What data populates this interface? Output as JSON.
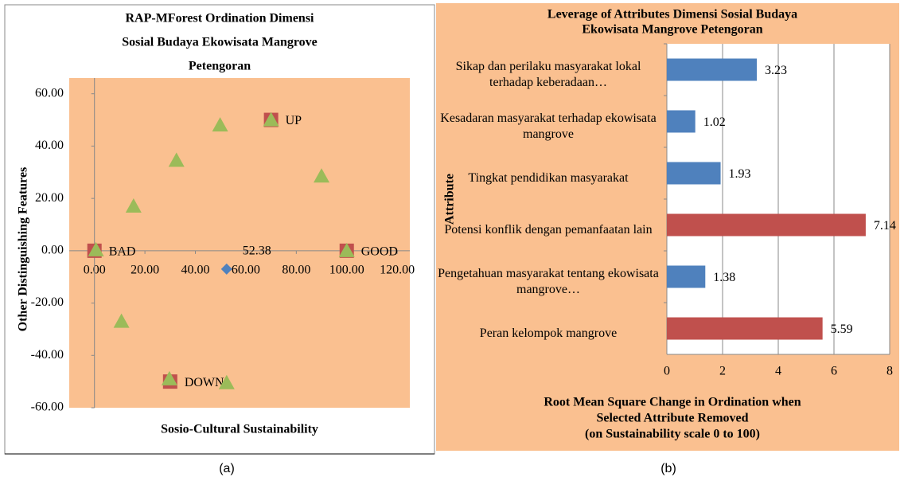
{
  "chart_data": [
    {
      "type": "scatter",
      "title": [
        "RAP-MForest Ordination Dimensi",
        "Sosial  Budaya Ekowisata Mangrove",
        "Petengoran"
      ],
      "x_label": "Sosio-Cultural Sustainability",
      "y_label": "Other Distinguishing Features",
      "xlim": [
        -10,
        125
      ],
      "ylim": [
        -60,
        66
      ],
      "xticks": [
        {
          "value": 0,
          "label": "0.00"
        },
        {
          "value": 20,
          "label": "20.00"
        },
        {
          "value": 40,
          "label": "40.00"
        },
        {
          "value": 60,
          "label": "60.00"
        },
        {
          "value": 80,
          "label": "80.00"
        },
        {
          "value": 100,
          "label": "100.00"
        },
        {
          "value": 120,
          "label": "120.00"
        }
      ],
      "yticks": [
        {
          "value": -60,
          "label": "-60.00"
        },
        {
          "value": -40,
          "label": "-40.00"
        },
        {
          "value": -20,
          "label": "-20.00"
        },
        {
          "value": 0,
          "label": "0.00"
        },
        {
          "value": 20,
          "label": "20.00"
        },
        {
          "value": 40,
          "label": "40.00"
        },
        {
          "value": 60,
          "label": "60.00"
        }
      ],
      "series": [
        {
          "color": "#c0504d",
          "marker": "square",
          "x": [
            0,
            100,
            70,
            30
          ],
          "values": [
            0,
            0,
            50,
            -50
          ],
          "labels": [
            "BAD",
            "GOOD",
            "UP",
            "DOWN"
          ]
        },
        {
          "color": "#9bbb59",
          "marker": "triangle",
          "x": [
            0.6,
            15.5,
            32.5,
            49.8,
            70,
            90,
            100,
            10.7,
            29.7,
            52.4
          ],
          "values": [
            0.3,
            17,
            34.5,
            48,
            50,
            28.5,
            0,
            -27,
            -49,
            -50.5
          ]
        },
        {
          "color": "#4f81bd",
          "marker": "diamond",
          "x": [
            52.38
          ],
          "values": [
            -7
          ],
          "x_labels": [
            "52.38"
          ]
        }
      ]
    },
    {
      "type": "hbar",
      "title": [
        "Leverage of Attributes Dimensi  Sosial Budaya",
        "Ekowisata Mangrove Petengoran"
      ],
      "y_label": "Attribute",
      "x_label": [
        "Root Mean Square Change in Ordination when",
        "Selected Attribute Removed",
        "(on Sustainability scale 0 to 100)"
      ],
      "categories": [
        "Sikap dan perilaku masyarakat lokal terhadap keberadaan…",
        "Kesadaran masyarakat terhadap ekowisata mangrove",
        "Tingkat pendidikan masyarakat",
        "Potensi konflik dengan pemanfaatan lain",
        "Pengetahuan masyarakat tentang ekowisata mangrove…",
        "Peran kelompok mangrove"
      ],
      "values": [
        3.23,
        1.02,
        1.93,
        7.14,
        1.38,
        5.59
      ],
      "colors": [
        "#4f81bd",
        "#4f81bd",
        "#4f81bd",
        "#c0504d",
        "#4f81bd",
        "#c0504d"
      ],
      "xlim": [
        0,
        8
      ],
      "xticks": [
        0,
        2,
        4,
        6,
        8
      ],
      "grid": true
    }
  ],
  "captions": [
    "(a)",
    "(b)"
  ]
}
